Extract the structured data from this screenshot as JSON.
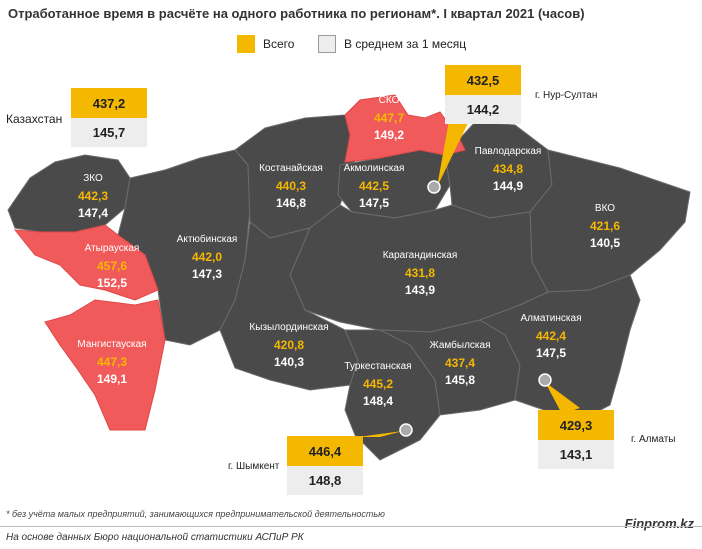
{
  "title": "Отработанное время в расчёте на одного работника по регионам*. I квартал 2021 (часов)",
  "legend": {
    "total_label": "Всего",
    "avg_label": "В среднем за 1 месяц",
    "total_color": "#f5b800",
    "avg_color": "#ededed"
  },
  "colors": {
    "region_gray": "#4a4a4a",
    "region_highlight": "#f15a5a",
    "value_gold": "#f5b800"
  },
  "kazakhstan": {
    "label": "Казахстан",
    "total": "437,2",
    "avg": "145,7"
  },
  "regions": [
    {
      "name": "ЗКО",
      "total": "442,3",
      "avg": "147,4",
      "highlight": false
    },
    {
      "name": "Атырауская",
      "total": "457,6",
      "avg": "152,5",
      "highlight": true
    },
    {
      "name": "Мангистауская",
      "total": "447,3",
      "avg": "149,1",
      "highlight": true
    },
    {
      "name": "Актюбинская",
      "total": "442,0",
      "avg": "147,3",
      "highlight": false
    },
    {
      "name": "Костанайская",
      "total": "440,3",
      "avg": "146,8",
      "highlight": false
    },
    {
      "name": "СКО",
      "total": "447,7",
      "avg": "149,2",
      "highlight": true
    },
    {
      "name": "Акмолинская",
      "total": "442,5",
      "avg": "147,5",
      "highlight": false
    },
    {
      "name": "Павлодарская",
      "total": "434,8",
      "avg": "144,9",
      "highlight": false
    },
    {
      "name": "ВКО",
      "total": "421,6",
      "avg": "140,5",
      "highlight": false
    },
    {
      "name": "Карагандинская",
      "total": "431,8",
      "avg": "143,9",
      "highlight": false
    },
    {
      "name": "Кызылординская",
      "total": "420,8",
      "avg": "140,3",
      "highlight": false
    },
    {
      "name": "Туркестанская",
      "total": "445,2",
      "avg": "148,4",
      "highlight": false
    },
    {
      "name": "Жамбылская",
      "total": "437,4",
      "avg": "145,8",
      "highlight": false
    },
    {
      "name": "Алматинская",
      "total": "442,4",
      "avg": "147,5",
      "highlight": false
    }
  ],
  "cities": [
    {
      "name": "г. Нур-Султан",
      "total": "432,5",
      "avg": "144,2"
    },
    {
      "name": "г. Алматы",
      "total": "429,3",
      "avg": "143,1"
    },
    {
      "name": "г. Шымкент",
      "total": "446,4",
      "avg": "148,8"
    }
  ],
  "footnote": "* без учёта малых предприятий, занимающихся предпринимательской деятельностью",
  "source": "На основе данных Бюро национальной статистики АСПиР РК",
  "brand": "Finprom.kz"
}
